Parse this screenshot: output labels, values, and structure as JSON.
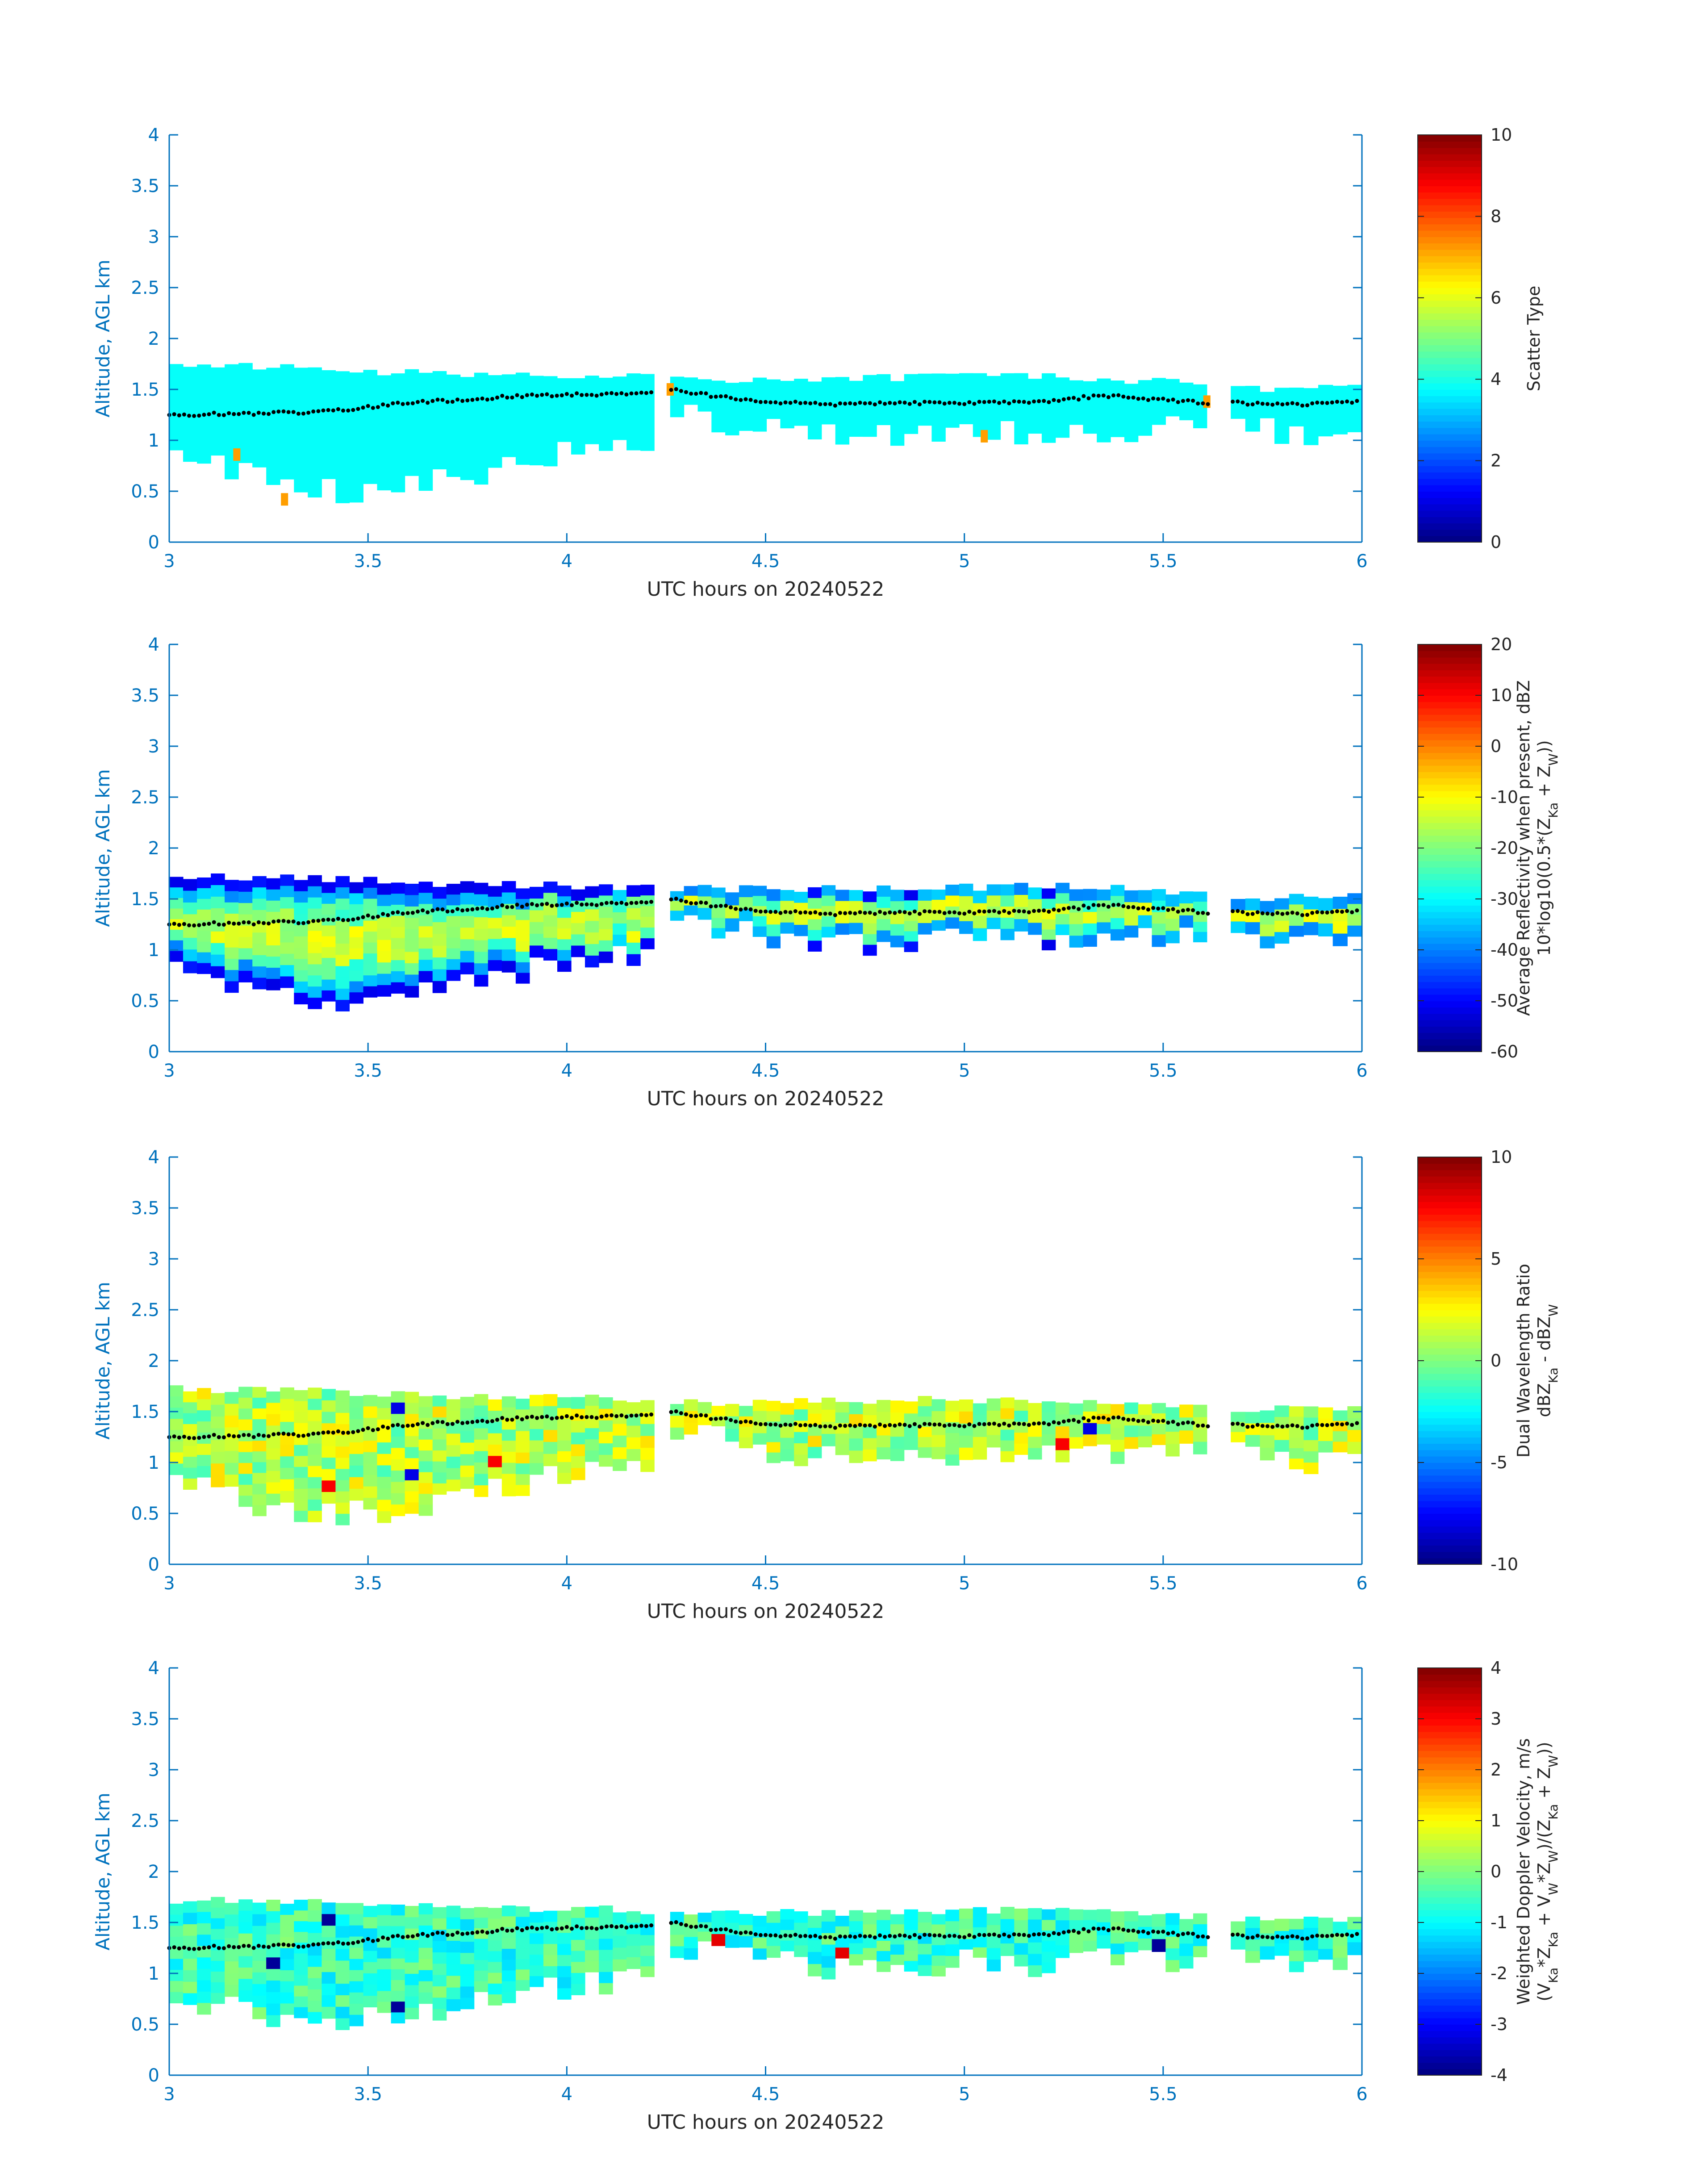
{
  "figure": {
    "colormap": "jet",
    "axis_color": "#0072BD",
    "cloud_top_marker_color": "#000000"
  },
  "chart_data": [
    {
      "type": "heatmap",
      "title": "",
      "xlabel": "UTC hours on 20240522",
      "ylabel": "Altitude, AGL km",
      "xlim": [
        3,
        6
      ],
      "ylim": [
        0,
        4
      ],
      "xticks": [
        "3",
        "3.5",
        "4",
        "4.5",
        "5",
        "5.5",
        "6"
      ],
      "yticks": [
        "0",
        "0.5",
        "1",
        "1.5",
        "2",
        "2.5",
        "3",
        "3.5",
        "4"
      ],
      "colorbar": {
        "label_lines": [
          "Scatter Type"
        ],
        "range": [
          0,
          10
        ],
        "ticks": [
          "0",
          "2",
          "4",
          "6",
          "8",
          "10"
        ]
      },
      "field": "scatter_type",
      "dominant_value": 3.8,
      "outlier_value": 7.2,
      "outliers": [
        [
          3.29,
          0.42
        ],
        [
          3.17,
          0.86
        ],
        [
          4.26,
          1.5
        ],
        [
          5.05,
          1.04
        ],
        [
          5.61,
          1.38
        ]
      ],
      "segments": [
        {
          "x": [
            3.0,
            4.22
          ],
          "top": [
            1.72,
            1.72,
            1.66,
            1.64,
            1.62
          ],
          "bottom": [
            0.9,
            0.5,
            0.55,
            0.82,
            0.98
          ]
        },
        {
          "x": [
            4.26,
            5.61
          ],
          "top": [
            1.6,
            1.6,
            1.62,
            1.62,
            1.56
          ],
          "bottom": [
            1.3,
            1.05,
            1.1,
            1.1,
            1.14
          ]
        },
        {
          "x": [
            5.67,
            6.0
          ],
          "top": [
            1.5,
            1.52,
            1.52
          ],
          "bottom": [
            1.18,
            1.0,
            1.12
          ]
        }
      ]
    },
    {
      "type": "heatmap",
      "title": "",
      "xlabel": "UTC hours on 20240522",
      "ylabel": "Altitude, AGL km",
      "xlim": [
        3,
        6
      ],
      "ylim": [
        0,
        4
      ],
      "xticks": [
        "3",
        "3.5",
        "4",
        "4.5",
        "5",
        "5.5",
        "6"
      ],
      "yticks": [
        "0",
        "0.5",
        "1",
        "1.5",
        "2",
        "2.5",
        "3",
        "3.5",
        "4"
      ],
      "colorbar": {
        "label_lines": [
          "Average Reflectivity when present, dBZ",
          "10*log10(0.5*(Z_Ka + Z_W))"
        ],
        "range": [
          -60,
          20
        ],
        "ticks": [
          "-60",
          "-50",
          "-40",
          "-30",
          "-20",
          "-10",
          "0",
          "10",
          "20"
        ]
      },
      "field": "reflectivity",
      "core_value": -15,
      "edge_value": -52,
      "segments": [
        {
          "x": [
            3.0,
            4.22
          ],
          "top": [
            1.72,
            1.72,
            1.66,
            1.64,
            1.62
          ],
          "bottom": [
            0.9,
            0.5,
            0.55,
            0.82,
            0.98
          ]
        },
        {
          "x": [
            4.26,
            5.61
          ],
          "top": [
            1.6,
            1.6,
            1.62,
            1.62,
            1.56
          ],
          "bottom": [
            1.3,
            1.05,
            1.1,
            1.1,
            1.14
          ]
        },
        {
          "x": [
            5.67,
            6.0
          ],
          "top": [
            1.5,
            1.52,
            1.52
          ],
          "bottom": [
            1.18,
            1.0,
            1.12
          ]
        }
      ]
    },
    {
      "type": "heatmap",
      "title": "",
      "xlabel": "UTC hours on 20240522",
      "ylabel": "Altitude, AGL km",
      "xlim": [
        3,
        6
      ],
      "ylim": [
        0,
        4
      ],
      "xticks": [
        "3",
        "3.5",
        "4",
        "4.5",
        "5",
        "5.5",
        "6"
      ],
      "yticks": [
        "0",
        "0.5",
        "1",
        "1.5",
        "2",
        "2.5",
        "3",
        "3.5",
        "4"
      ],
      "colorbar": {
        "label_lines": [
          "Dual Wavelength Ratio",
          "dBZ_Ka - dBZ_W"
        ],
        "range": [
          -10,
          10
        ],
        "ticks": [
          "-10",
          "-5",
          "0",
          "5",
          "10"
        ]
      },
      "field": "dual_wavelength_ratio",
      "core_value": 1.0,
      "segments": [
        {
          "x": [
            3.0,
            4.22
          ],
          "top": [
            1.72,
            1.72,
            1.66,
            1.64,
            1.62
          ],
          "bottom": [
            0.9,
            0.5,
            0.55,
            0.82,
            0.98
          ]
        },
        {
          "x": [
            4.26,
            5.61
          ],
          "top": [
            1.58,
            1.6,
            1.62,
            1.6,
            1.56
          ],
          "bottom": [
            1.34,
            1.05,
            1.05,
            1.1,
            1.14
          ]
        },
        {
          "x": [
            5.67,
            6.0
          ],
          "top": [
            1.5,
            1.55,
            1.52
          ],
          "bottom": [
            1.2,
            1.0,
            1.12
          ]
        }
      ]
    },
    {
      "type": "heatmap",
      "title": "",
      "xlabel": "UTC hours on 20240522",
      "ylabel": "Altitude, AGL km",
      "xlim": [
        3,
        6
      ],
      "ylim": [
        0,
        4
      ],
      "xticks": [
        "3",
        "3.5",
        "4",
        "4.5",
        "5",
        "5.5",
        "6"
      ],
      "yticks": [
        "0",
        "0.5",
        "1",
        "1.5",
        "2",
        "2.5",
        "3",
        "3.5",
        "4"
      ],
      "colorbar": {
        "label_lines": [
          "Weighted Doppler Velocity, m/s",
          "(V_Ka*Z_Ka + V_W*Z_W)/(Z_Ka + Z_W))"
        ],
        "range": [
          -4,
          4
        ],
        "ticks": [
          "-4",
          "-3",
          "-2",
          "-1",
          "0",
          "1",
          "2",
          "3",
          "4"
        ]
      },
      "field": "doppler_velocity",
      "core_value": -0.6,
      "segments": [
        {
          "x": [
            3.0,
            4.22
          ],
          "top": [
            1.72,
            1.72,
            1.66,
            1.64,
            1.62
          ],
          "bottom": [
            0.8,
            0.5,
            0.55,
            0.82,
            0.98
          ]
        },
        {
          "x": [
            4.26,
            5.61
          ],
          "top": [
            1.58,
            1.6,
            1.62,
            1.62,
            1.56
          ],
          "bottom": [
            1.3,
            1.05,
            1.1,
            1.1,
            1.14
          ]
        },
        {
          "x": [
            5.67,
            6.0
          ],
          "top": [
            1.52,
            1.55,
            1.52
          ],
          "bottom": [
            1.18,
            1.0,
            1.12
          ]
        }
      ]
    }
  ],
  "cloud_top_line": {
    "x": [
      3.0,
      3.15,
      3.3,
      3.45,
      3.6,
      3.75,
      3.9,
      4.05,
      4.22,
      4.26,
      4.4,
      4.5,
      4.65,
      4.8,
      5.0,
      5.2,
      5.35,
      5.5,
      5.61,
      5.67,
      5.8,
      5.9,
      6.0
    ],
    "y": [
      1.25,
      1.26,
      1.27,
      1.3,
      1.37,
      1.4,
      1.44,
      1.45,
      1.47,
      1.5,
      1.42,
      1.38,
      1.35,
      1.36,
      1.37,
      1.38,
      1.44,
      1.4,
      1.37,
      1.37,
      1.35,
      1.36,
      1.38
    ]
  }
}
